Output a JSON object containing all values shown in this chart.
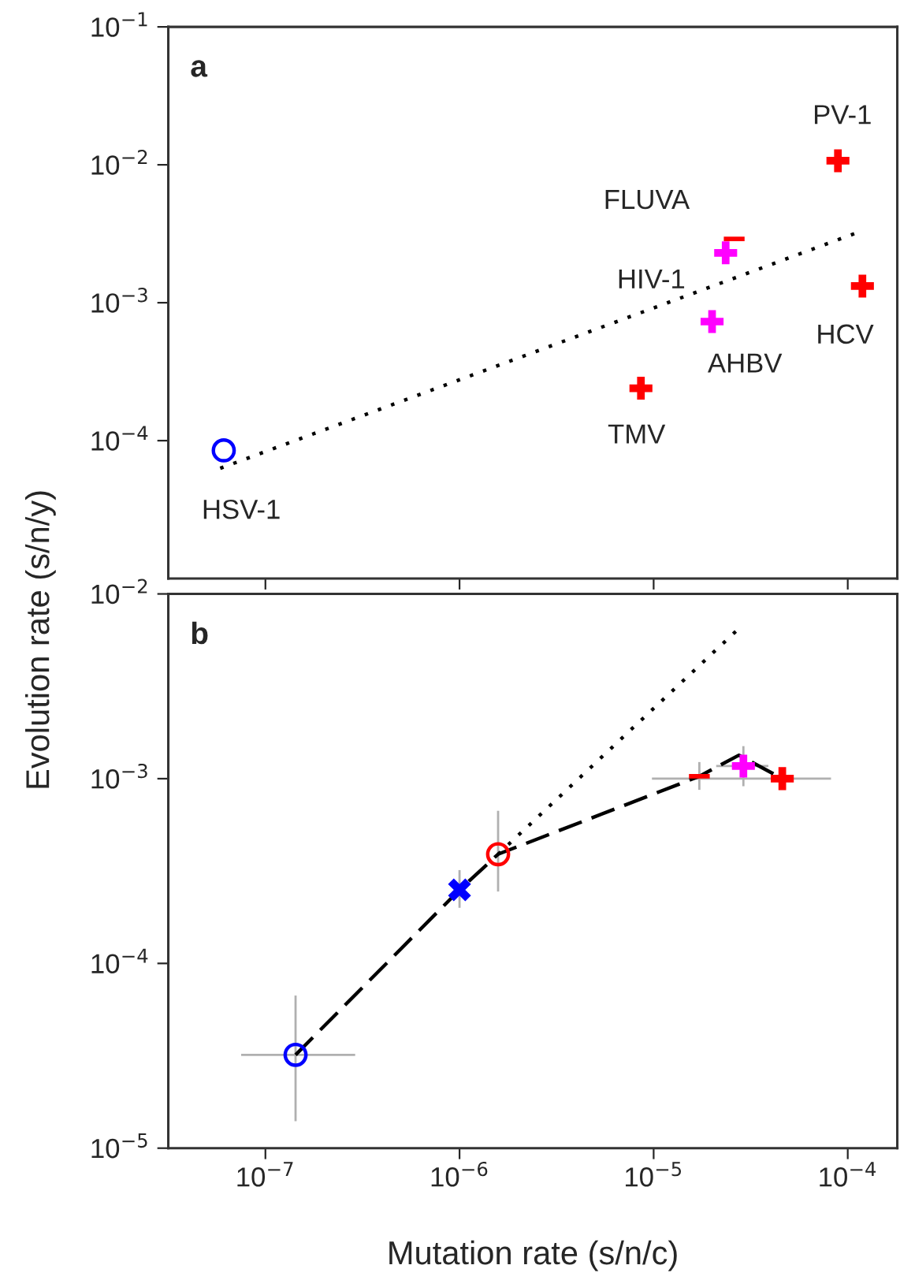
{
  "chart_data": [
    {
      "type": "scatter",
      "title": "a",
      "log": "xy",
      "tick_labels": "y",
      "grid": false,
      "legend": false,
      "xlim": [
        3.16e-08,
        0.00018
      ],
      "ylim": [
        1e-05,
        0.1
      ],
      "xticks": [
        {
          "value": 1e-07,
          "label": null
        },
        {
          "value": 1e-06,
          "label": null
        },
        {
          "value": 1e-05,
          "label": null
        },
        {
          "value": 0.0001,
          "label": null
        }
      ],
      "yticks": [
        {
          "value": 0.0001,
          "label": "10$^{−4}$"
        },
        {
          "value": 0.001,
          "label": "10$^{−3}$"
        },
        {
          "value": 0.01,
          "label": "10$^{−2}$"
        },
        {
          "value": 0.1,
          "label": "10$^{−1}$"
        }
      ],
      "series": [
        {
          "type": "line",
          "line_style": "dotted",
          "marker": "none",
          "color": "#000000",
          "x": [
            5.85e-08,
            0.000115
          ],
          "values": [
            6.3e-05,
            0.00327
          ]
        },
        {
          "marker": "circle",
          "color": "#0000ff",
          "x": [
            6.1e-08
          ],
          "values": [
            8.5e-05
          ]
        },
        {
          "marker": "cross",
          "colors": [
            "#ff0000",
            "#ff00ff",
            "#ff00ff",
            "#ff0000",
            "#ff0000"
          ],
          "x": [
            8.6e-06,
            2e-05,
            2.35e-05,
            8.9e-05,
            0.000119
          ],
          "values": [
            0.00024,
            0.00073,
            0.0023,
            0.0107,
            0.00132
          ]
        },
        {
          "color": "#ff0000",
          "x": [
            2.6e-05
          ],
          "values": [
            0.0029
          ]
        }
      ],
      "annotations": [
        {
          "text": "HSV-1",
          "x": 6.1e-08,
          "y": 8.5e-05
        },
        {
          "text": "TMV",
          "x": 8.6e-06,
          "y": 0.00024
        },
        {
          "text": "AHBV",
          "x": 2e-05,
          "y": 0.00073
        },
        {
          "text": "HIV-1",
          "x": 2.35e-05,
          "y": 0.0023
        },
        {
          "text": "FLUVA",
          "x": 2.6e-05,
          "y": 0.0029
        },
        {
          "text": "PV-1",
          "x": 8.9e-05,
          "y": 0.0107
        },
        {
          "text": "HCV",
          "x": 0.000119,
          "y": 0.00132
        }
      ]
    },
    {
      "type": "scatter",
      "title": "b",
      "log": "xy",
      "grid": false,
      "legend": false,
      "xlabel": "Mutation rate (s/n/c)",
      "ylabel": "Evolution rate (s/n/y)",
      "xlim": [
        3.16e-08,
        0.00018
      ],
      "ylim": [
        1e-05,
        0.01
      ],
      "xticks": [
        {
          "value": 1e-07,
          "label": "10$^{−7}$"
        },
        {
          "value": 1e-06,
          "label": "10$^{−6}$"
        },
        {
          "value": 1e-05,
          "label": "10$^{−5}$"
        },
        {
          "value": 0.0001,
          "label": "10$^{−4}$"
        }
      ],
      "yticks": [
        {
          "value": 1e-05,
          "label": "10$^{−5}$"
        },
        {
          "value": 0.0001,
          "label": "10$^{−4}$"
        },
        {
          "value": 0.001,
          "label": "10$^{−3}$"
        },
        {
          "value": 0.01,
          "label": "10$^{−2}$"
        }
      ],
      "series": [
        {
          "type": "line",
          "line_style": "dotted",
          "marker": "none",
          "color": "#000000",
          "x": [
            1.58e-06,
            2.75e-05
          ],
          "values": [
            0.00039,
            0.0065
          ]
        },
        {
          "type": "line",
          "line_style": "dashed",
          "marker": "none",
          "color": "#000000",
          "x": [
            1.43e-07,
            1e-06,
            1.58e-06,
            1.72e-05,
            2.75e-05,
            4.6e-05
          ],
          "values": [
            3.2e-05,
            0.00025,
            0.00039,
            0.00103,
            0.00134,
            0.001
          ]
        },
        {
          "marker": "circle",
          "colors": [
            "#0000ff",
            "#ff0000"
          ],
          "x": [
            1.43e-07,
            1.58e-06
          ],
          "values": [
            3.2e-05,
            0.00039
          ],
          "errors": [
            [
              1.4e-05,
              6.7e-05
            ],
            [
              0.000245,
              0.00067
            ]
          ],
          "xerrors": [
            [
              7.5e-08,
              2.9e-07
            ],
            null
          ]
        },
        {
          "marker": "x",
          "color": "#0000ff",
          "x": [
            1e-06
          ],
          "values": [
            0.00025
          ],
          "errors": [
            [
              0.0002,
              0.00032
            ]
          ]
        },
        {
          "color": "#ff0000",
          "x": [
            1.72e-05
          ],
          "values": [
            0.00103
          ],
          "errors": [
            [
              0.00087,
              0.00123
            ]
          ]
        },
        {
          "marker": "cross",
          "colors": [
            "#ff00ff",
            "#ff0000"
          ],
          "x": [
            2.9e-05,
            4.6e-05
          ],
          "values": [
            0.00117,
            0.001
          ],
          "errors": [
            [
              0.00091,
              0.0015
            ],
            null
          ],
          "xerrors": [
            [
              2.1e-05,
              3.9e-05
            ],
            [
              9.8e-06,
              8.2e-05
            ]
          ]
        }
      ]
    }
  ]
}
